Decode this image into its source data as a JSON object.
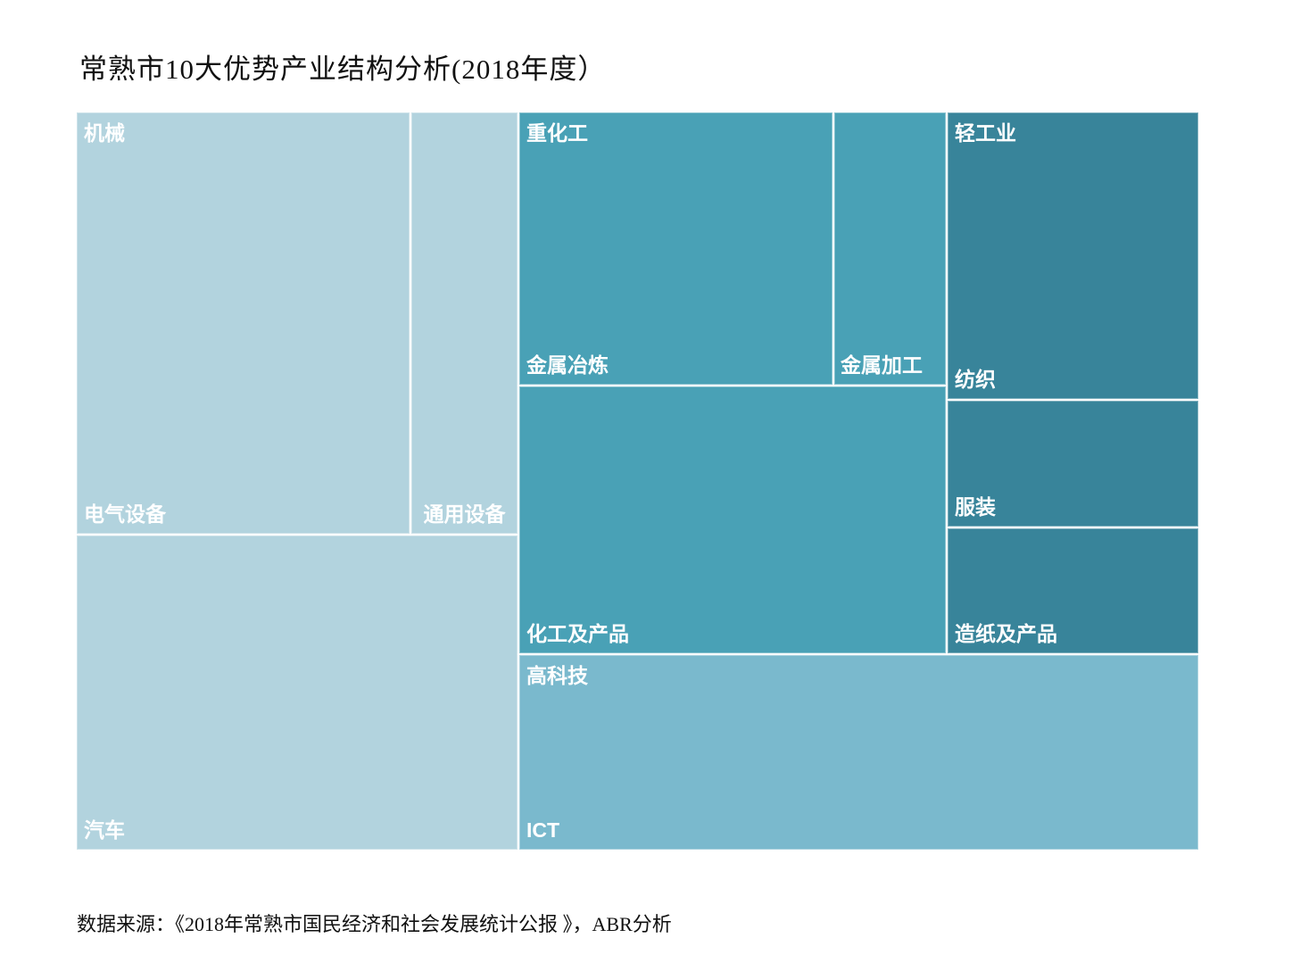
{
  "title": "常熟市10大优势产业结构分析(2018年度）",
  "source": "数据来源：《2018年常熟市国民经济和社会发展统计公报 》，ABR分析",
  "colors": {
    "machinery_group": "#b2d3de",
    "heavy_chemical_group": "#49a1b6",
    "light_industry_group": "#38849a",
    "hightech_group": "#7ab9cd",
    "label_text": "#ffffff",
    "divider": "#ffffff"
  },
  "chart_data": {
    "type": "treemap",
    "title": "常熟市10大优势产业结构分析(2018年度）",
    "legend": "none",
    "value_labels_shown": false,
    "groups": [
      {
        "name": "机械",
        "color": "#b2d3de",
        "children": [
          {
            "name": "电气设备",
            "area_pct": 17.0
          },
          {
            "name": "通用设备",
            "area_pct": 5.4
          },
          {
            "name": "汽车",
            "area_pct": 16.7
          }
        ]
      },
      {
        "name": "重化工",
        "color": "#49a1b6",
        "children": [
          {
            "name": "金属冶炼",
            "area_pct": 10.3
          },
          {
            "name": "金属加工",
            "area_pct": 3.7
          },
          {
            "name": "化工及产品",
            "area_pct": 13.8
          }
        ]
      },
      {
        "name": "轻工业",
        "color": "#38849a",
        "children": [
          {
            "name": "纺织",
            "area_pct": 8.7
          },
          {
            "name": "服装",
            "area_pct": 3.8
          },
          {
            "name": "造纸及产品",
            "area_pct": 3.8
          }
        ]
      },
      {
        "name": "高科技",
        "color": "#7ab9cd",
        "children": [
          {
            "name": "ICT",
            "area_pct": 16.0
          }
        ]
      }
    ]
  }
}
